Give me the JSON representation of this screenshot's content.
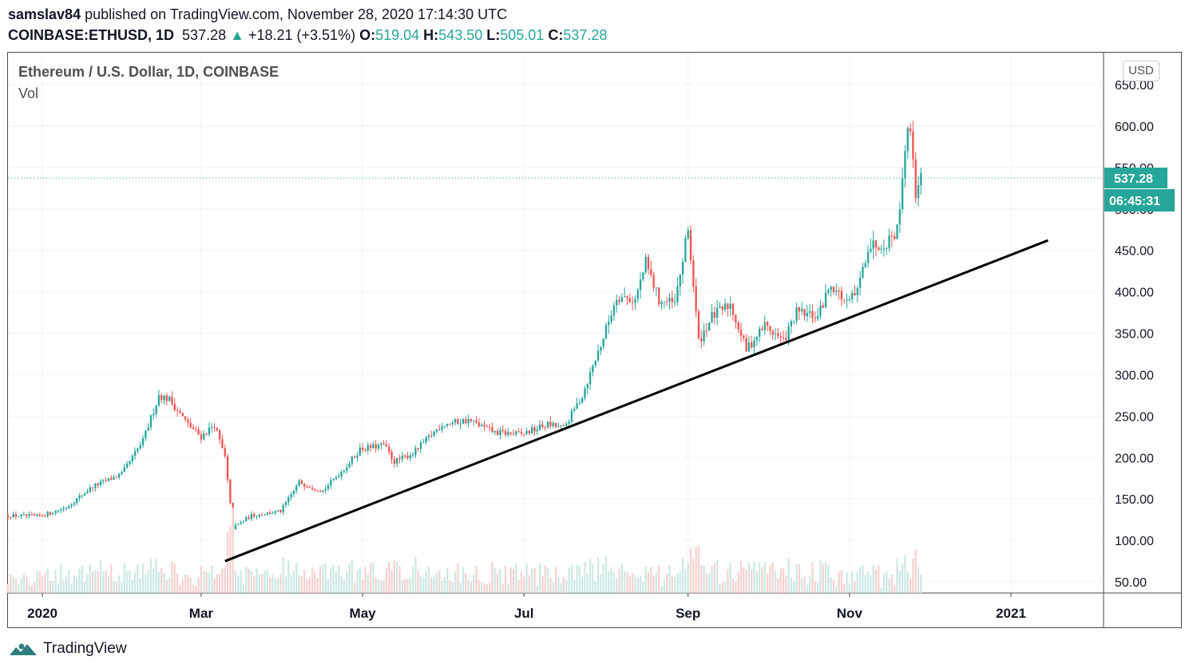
{
  "header": {
    "author": "samslav84",
    "published": " published on TradingView.com, November 28, 2020 17:14:30 UTC"
  },
  "quote": {
    "symbol": "COINBASE:ETHUSD, 1D",
    "last": "537.28",
    "arrow": "▲",
    "change": "+18.21 (+3.51%)",
    "o_label": "O:",
    "o": "519.04",
    "h_label": "H:",
    "h": "543.50",
    "l_label": "L:",
    "l": "505.01",
    "c_label": "C:",
    "c": "537.28"
  },
  "legend": {
    "title": "Ethereum / U.S. Dollar, 1D, COINBASE",
    "volume": "Vol"
  },
  "currency": "USD",
  "footer": {
    "brand": "TradingView",
    "logo_icon": "tradingview-logo-icon"
  },
  "colors": {
    "up": "#26a69a",
    "down": "#ef5350",
    "grid": "#f0f3fa",
    "trendline": "#000000",
    "price_tag": "#26a69a"
  },
  "chart_data": {
    "type": "candlestick",
    "title": "Ethereum / U.S. Dollar, 1D, COINBASE",
    "ylim": [
      30,
      660
    ],
    "yticks": [
      "650.00",
      "600.00",
      "550.00",
      "500.00",
      "450.00",
      "400.00",
      "350.00",
      "300.00",
      "250.00",
      "200.00",
      "150.00",
      "100.00",
      "50.00"
    ],
    "ytick_values": [
      650,
      600,
      550,
      500,
      450,
      400,
      350,
      300,
      250,
      200,
      150,
      100,
      50
    ],
    "xticks": [
      "2020",
      "Mar",
      "May",
      "Jul",
      "Sep",
      "Nov",
      "2021"
    ],
    "xtick_dates": [
      "2020-01-01",
      "2020-03-01",
      "2020-05-01",
      "2020-07-01",
      "2020-09-01",
      "2020-11-01",
      "2021-01-01"
    ],
    "x_range": [
      "2019-12-19",
      "2021-02-05"
    ],
    "last_price": "537.28",
    "last_price_value": 537.28,
    "countdown": "06:45:31",
    "trendline": {
      "start": [
        "2020-03-10",
        75
      ],
      "end": [
        "2021-01-15",
        462
      ]
    },
    "price_path": [
      [
        "2019-12-19",
        130
      ],
      [
        "2019-12-31",
        129
      ],
      [
        "2020-01-10",
        140
      ],
      [
        "2020-01-20",
        165
      ],
      [
        "2020-01-31",
        180
      ],
      [
        "2020-02-08",
        220
      ],
      [
        "2020-02-14",
        275
      ],
      [
        "2020-02-18",
        270
      ],
      [
        "2020-02-25",
        240
      ],
      [
        "2020-03-01",
        225
      ],
      [
        "2020-03-06",
        240
      ],
      [
        "2020-03-10",
        200
      ],
      [
        "2020-03-13",
        115
      ],
      [
        "2020-03-20",
        130
      ],
      [
        "2020-03-31",
        135
      ],
      [
        "2020-04-07",
        170
      ],
      [
        "2020-04-16",
        160
      ],
      [
        "2020-04-25",
        190
      ],
      [
        "2020-04-30",
        210
      ],
      [
        "2020-05-09",
        215
      ],
      [
        "2020-05-13",
        195
      ],
      [
        "2020-05-20",
        205
      ],
      [
        "2020-05-31",
        240
      ],
      [
        "2020-06-10",
        245
      ],
      [
        "2020-06-20",
        230
      ],
      [
        "2020-06-30",
        228
      ],
      [
        "2020-07-10",
        240
      ],
      [
        "2020-07-16",
        235
      ],
      [
        "2020-07-23",
        275
      ],
      [
        "2020-07-31",
        345
      ],
      [
        "2020-08-05",
        395
      ],
      [
        "2020-08-12",
        390
      ],
      [
        "2020-08-16",
        435
      ],
      [
        "2020-08-21",
        390
      ],
      [
        "2020-08-27",
        385
      ],
      [
        "2020-09-01",
        475
      ],
      [
        "2020-09-05",
        340
      ],
      [
        "2020-09-10",
        370
      ],
      [
        "2020-09-17",
        385
      ],
      [
        "2020-09-23",
        330
      ],
      [
        "2020-09-30",
        360
      ],
      [
        "2020-10-07",
        340
      ],
      [
        "2020-10-12",
        375
      ],
      [
        "2020-10-20",
        370
      ],
      [
        "2020-10-25",
        410
      ],
      [
        "2020-10-31",
        385
      ],
      [
        "2020-11-04",
        400
      ],
      [
        "2020-11-08",
        455
      ],
      [
        "2020-11-15",
        460
      ],
      [
        "2020-11-19",
        475
      ],
      [
        "2020-11-23",
        605
      ],
      [
        "2020-11-25",
        565
      ],
      [
        "2020-11-26",
        520
      ],
      [
        "2020-11-28",
        537
      ]
    ]
  }
}
